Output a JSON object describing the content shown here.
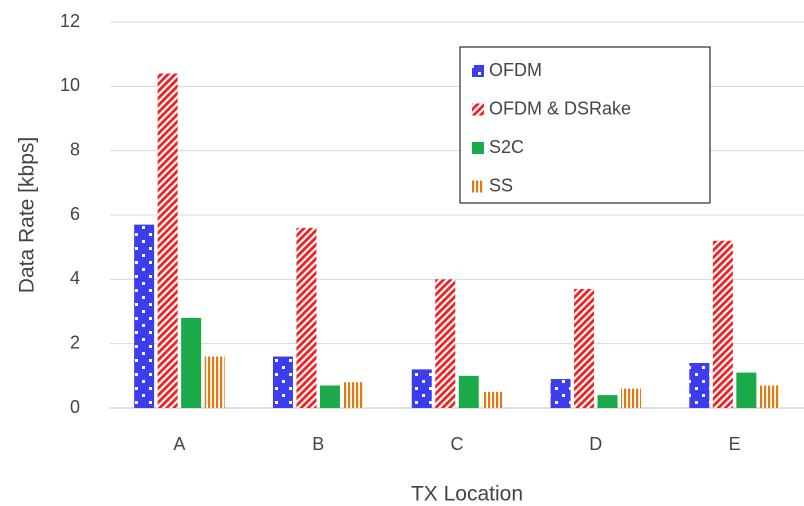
{
  "chart_data": {
    "type": "bar",
    "x_label": "TX Location",
    "y_label": "Data Rate [kbps]",
    "categories": [
      "A",
      "B",
      "C",
      "D",
      "E"
    ],
    "series": [
      {
        "name": "OFDM",
        "color": "#3c3cf0",
        "hatch": "dots",
        "values": [
          5.7,
          1.6,
          1.2,
          0.9,
          1.4
        ]
      },
      {
        "name": "OFDM & DSRake",
        "color": "#f02020",
        "hatch": "diagonal",
        "values": [
          10.4,
          5.6,
          4.0,
          3.7,
          5.2
        ]
      },
      {
        "name": "S2C",
        "color": "#1aaa4a",
        "hatch": "solid",
        "values": [
          2.8,
          0.7,
          1.0,
          0.4,
          1.1
        ]
      },
      {
        "name": "SS",
        "color": "#e07a10",
        "hatch": "vertical",
        "values": [
          1.6,
          0.8,
          0.5,
          0.6,
          0.7
        ]
      }
    ],
    "ylim": [
      0,
      12
    ],
    "yticks": [
      0,
      2,
      4,
      6,
      8,
      10,
      12
    ],
    "grid": true
  }
}
